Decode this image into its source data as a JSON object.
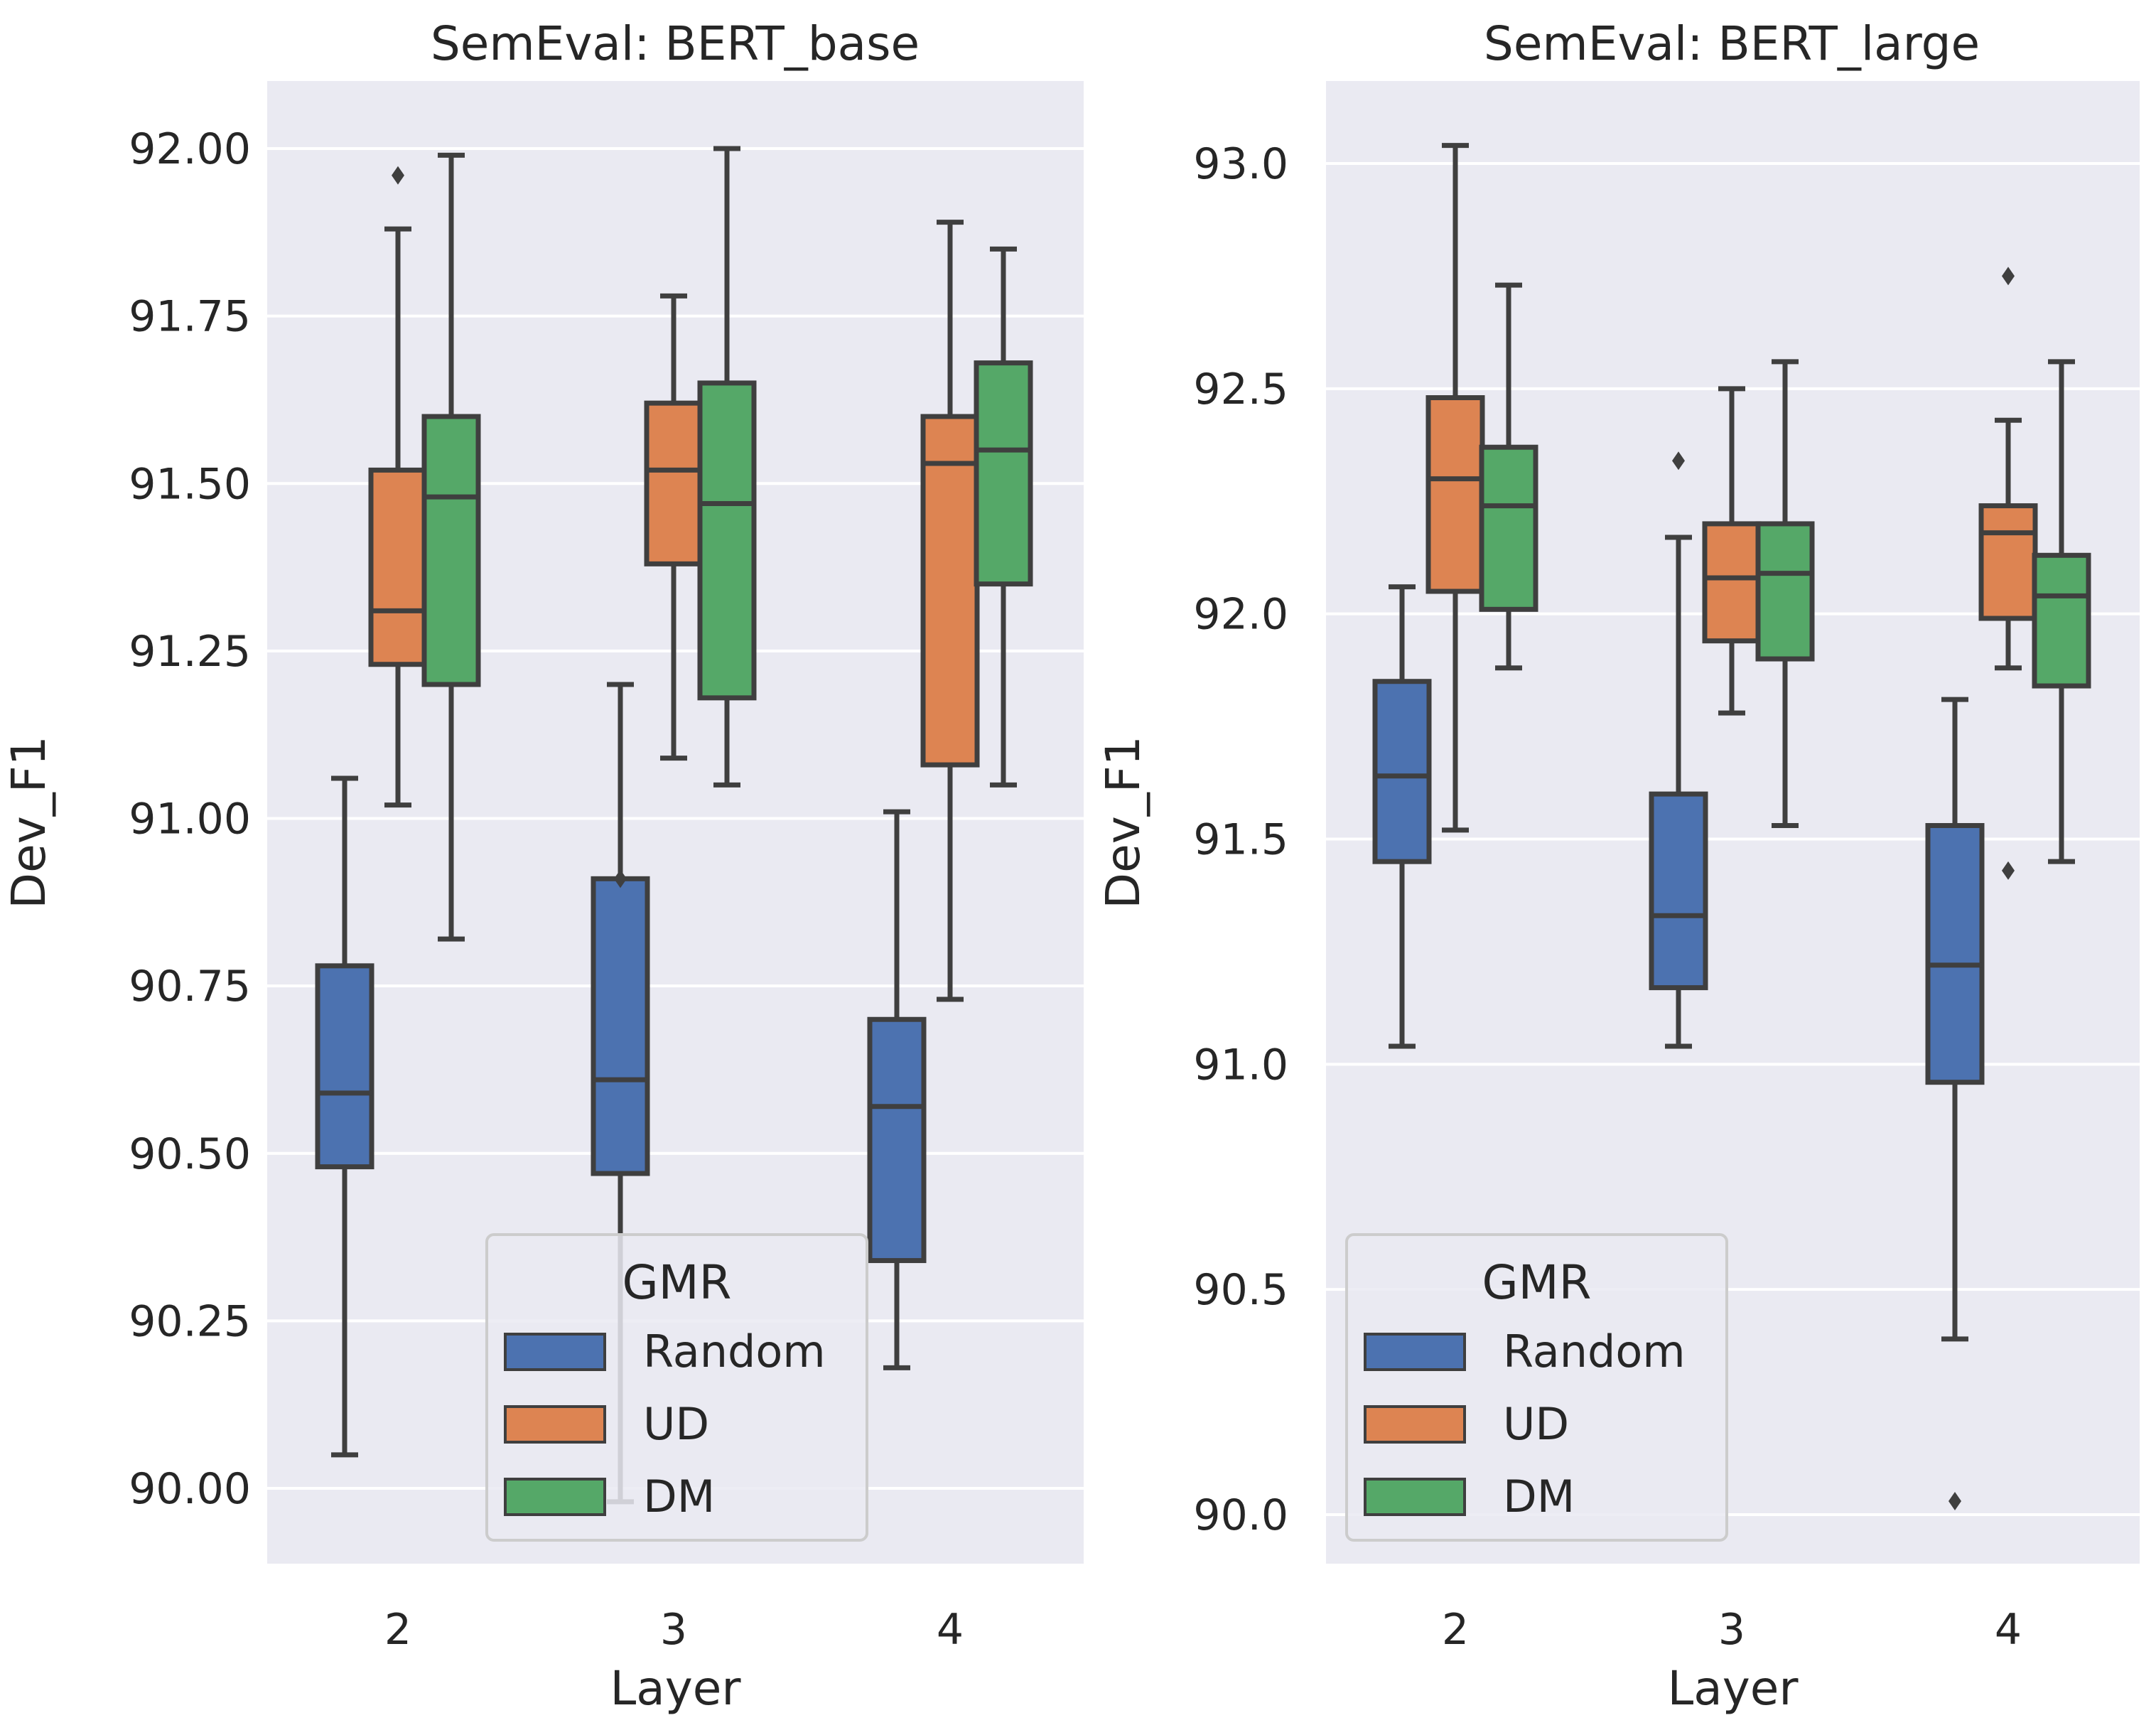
{
  "chart_data": [
    {
      "type": "box",
      "title": "SemEval: BERT_base",
      "xlabel": "Layer",
      "ylabel": "Dev_F1",
      "categories": [
        "2",
        "3",
        "4"
      ],
      "ylim": [
        89.9,
        92.1
      ],
      "yticks": [
        "90.00",
        "90.25",
        "90.50",
        "90.75",
        "91.00",
        "91.25",
        "91.50",
        "91.75",
        "92.00"
      ],
      "grid": true,
      "legend": {
        "title": "GMR",
        "position": "lower-center",
        "entries": [
          "Random",
          "UD",
          "DM"
        ]
      },
      "series": [
        {
          "name": "Random",
          "color": "#4c72b0",
          "boxes": [
            {
              "category": "2",
              "whisker_low": 90.05,
              "q1": 90.48,
              "median": 90.59,
              "q3": 90.78,
              "whisker_high": 91.06,
              "outliers": []
            },
            {
              "category": "3",
              "whisker_low": 89.98,
              "q1": 90.47,
              "median": 90.61,
              "q3": 90.91,
              "whisker_high": 91.2,
              "outliers": [
                90.91
              ]
            },
            {
              "category": "4",
              "whisker_low": 90.18,
              "q1": 90.34,
              "median": 90.57,
              "q3": 90.7,
              "whisker_high": 91.01,
              "outliers": []
            }
          ]
        },
        {
          "name": "UD",
          "color": "#dd8452",
          "boxes": [
            {
              "category": "2",
              "whisker_low": 91.02,
              "q1": 91.23,
              "median": 91.31,
              "q3": 91.52,
              "whisker_high": 91.88,
              "outliers": [
                91.96
              ]
            },
            {
              "category": "3",
              "whisker_low": 91.09,
              "q1": 91.38,
              "median": 91.52,
              "q3": 91.62,
              "whisker_high": 91.78,
              "outliers": []
            },
            {
              "category": "4",
              "whisker_low": 90.73,
              "q1": 91.08,
              "median": 91.53,
              "q3": 91.6,
              "whisker_high": 91.89,
              "outliers": []
            }
          ]
        },
        {
          "name": "DM",
          "color": "#55a868",
          "boxes": [
            {
              "category": "2",
              "whisker_low": 90.82,
              "q1": 91.2,
              "median": 91.48,
              "q3": 91.6,
              "whisker_high": 91.99,
              "outliers": []
            },
            {
              "category": "3",
              "whisker_low": 91.05,
              "q1": 91.18,
              "median": 91.47,
              "q3": 91.65,
              "whisker_high": 92.0,
              "outliers": []
            },
            {
              "category": "4",
              "whisker_low": 91.05,
              "q1": 91.35,
              "median": 91.55,
              "q3": 91.68,
              "whisker_high": 91.85,
              "outliers": []
            }
          ]
        }
      ]
    },
    {
      "type": "box",
      "title": "SemEval: BERT_large",
      "xlabel": "Layer",
      "ylabel": "Dev_F1",
      "categories": [
        "2",
        "3",
        "4"
      ],
      "ylim": [
        89.89,
        93.18
      ],
      "yticks": [
        "90.0",
        "90.5",
        "91.0",
        "91.5",
        "92.0",
        "92.5",
        "93.0"
      ],
      "grid": true,
      "legend": {
        "title": "GMR",
        "position": "lower-left",
        "entries": [
          "Random",
          "UD",
          "DM"
        ]
      },
      "series": [
        {
          "name": "Random",
          "color": "#4c72b0",
          "boxes": [
            {
              "category": "2",
              "whisker_low": 91.04,
              "q1": 91.45,
              "median": 91.64,
              "q3": 91.85,
              "whisker_high": 92.06,
              "outliers": []
            },
            {
              "category": "3",
              "whisker_low": 91.04,
              "q1": 91.17,
              "median": 91.33,
              "q3": 91.6,
              "whisker_high": 92.17,
              "outliers": [
                92.34
              ]
            },
            {
              "category": "4",
              "whisker_low": 90.39,
              "q1": 90.96,
              "median": 91.22,
              "q3": 91.53,
              "whisker_high": 91.81,
              "outliers": [
                90.03
              ]
            }
          ]
        },
        {
          "name": "UD",
          "color": "#dd8452",
          "boxes": [
            {
              "category": "2",
              "whisker_low": 91.52,
              "q1": 92.05,
              "median": 92.3,
              "q3": 92.48,
              "whisker_high": 93.04,
              "outliers": []
            },
            {
              "category": "3",
              "whisker_low": 91.78,
              "q1": 91.94,
              "median": 92.08,
              "q3": 92.2,
              "whisker_high": 92.5,
              "outliers": []
            },
            {
              "category": "4",
              "whisker_low": 91.88,
              "q1": 91.99,
              "median": 92.18,
              "q3": 92.24,
              "whisker_high": 92.43,
              "outliers": [
                91.43,
                92.75
              ]
            }
          ]
        },
        {
          "name": "DM",
          "color": "#55a868",
          "boxes": [
            {
              "category": "2",
              "whisker_low": 91.88,
              "q1": 92.01,
              "median": 92.24,
              "q3": 92.37,
              "whisker_high": 92.73,
              "outliers": []
            },
            {
              "category": "3",
              "whisker_low": 91.53,
              "q1": 91.9,
              "median": 92.09,
              "q3": 92.2,
              "whisker_high": 92.56,
              "outliers": []
            },
            {
              "category": "4",
              "whisker_low": 91.45,
              "q1": 91.84,
              "median": 92.04,
              "q3": 92.13,
              "whisker_high": 92.56,
              "outliers": []
            }
          ]
        }
      ]
    }
  ]
}
